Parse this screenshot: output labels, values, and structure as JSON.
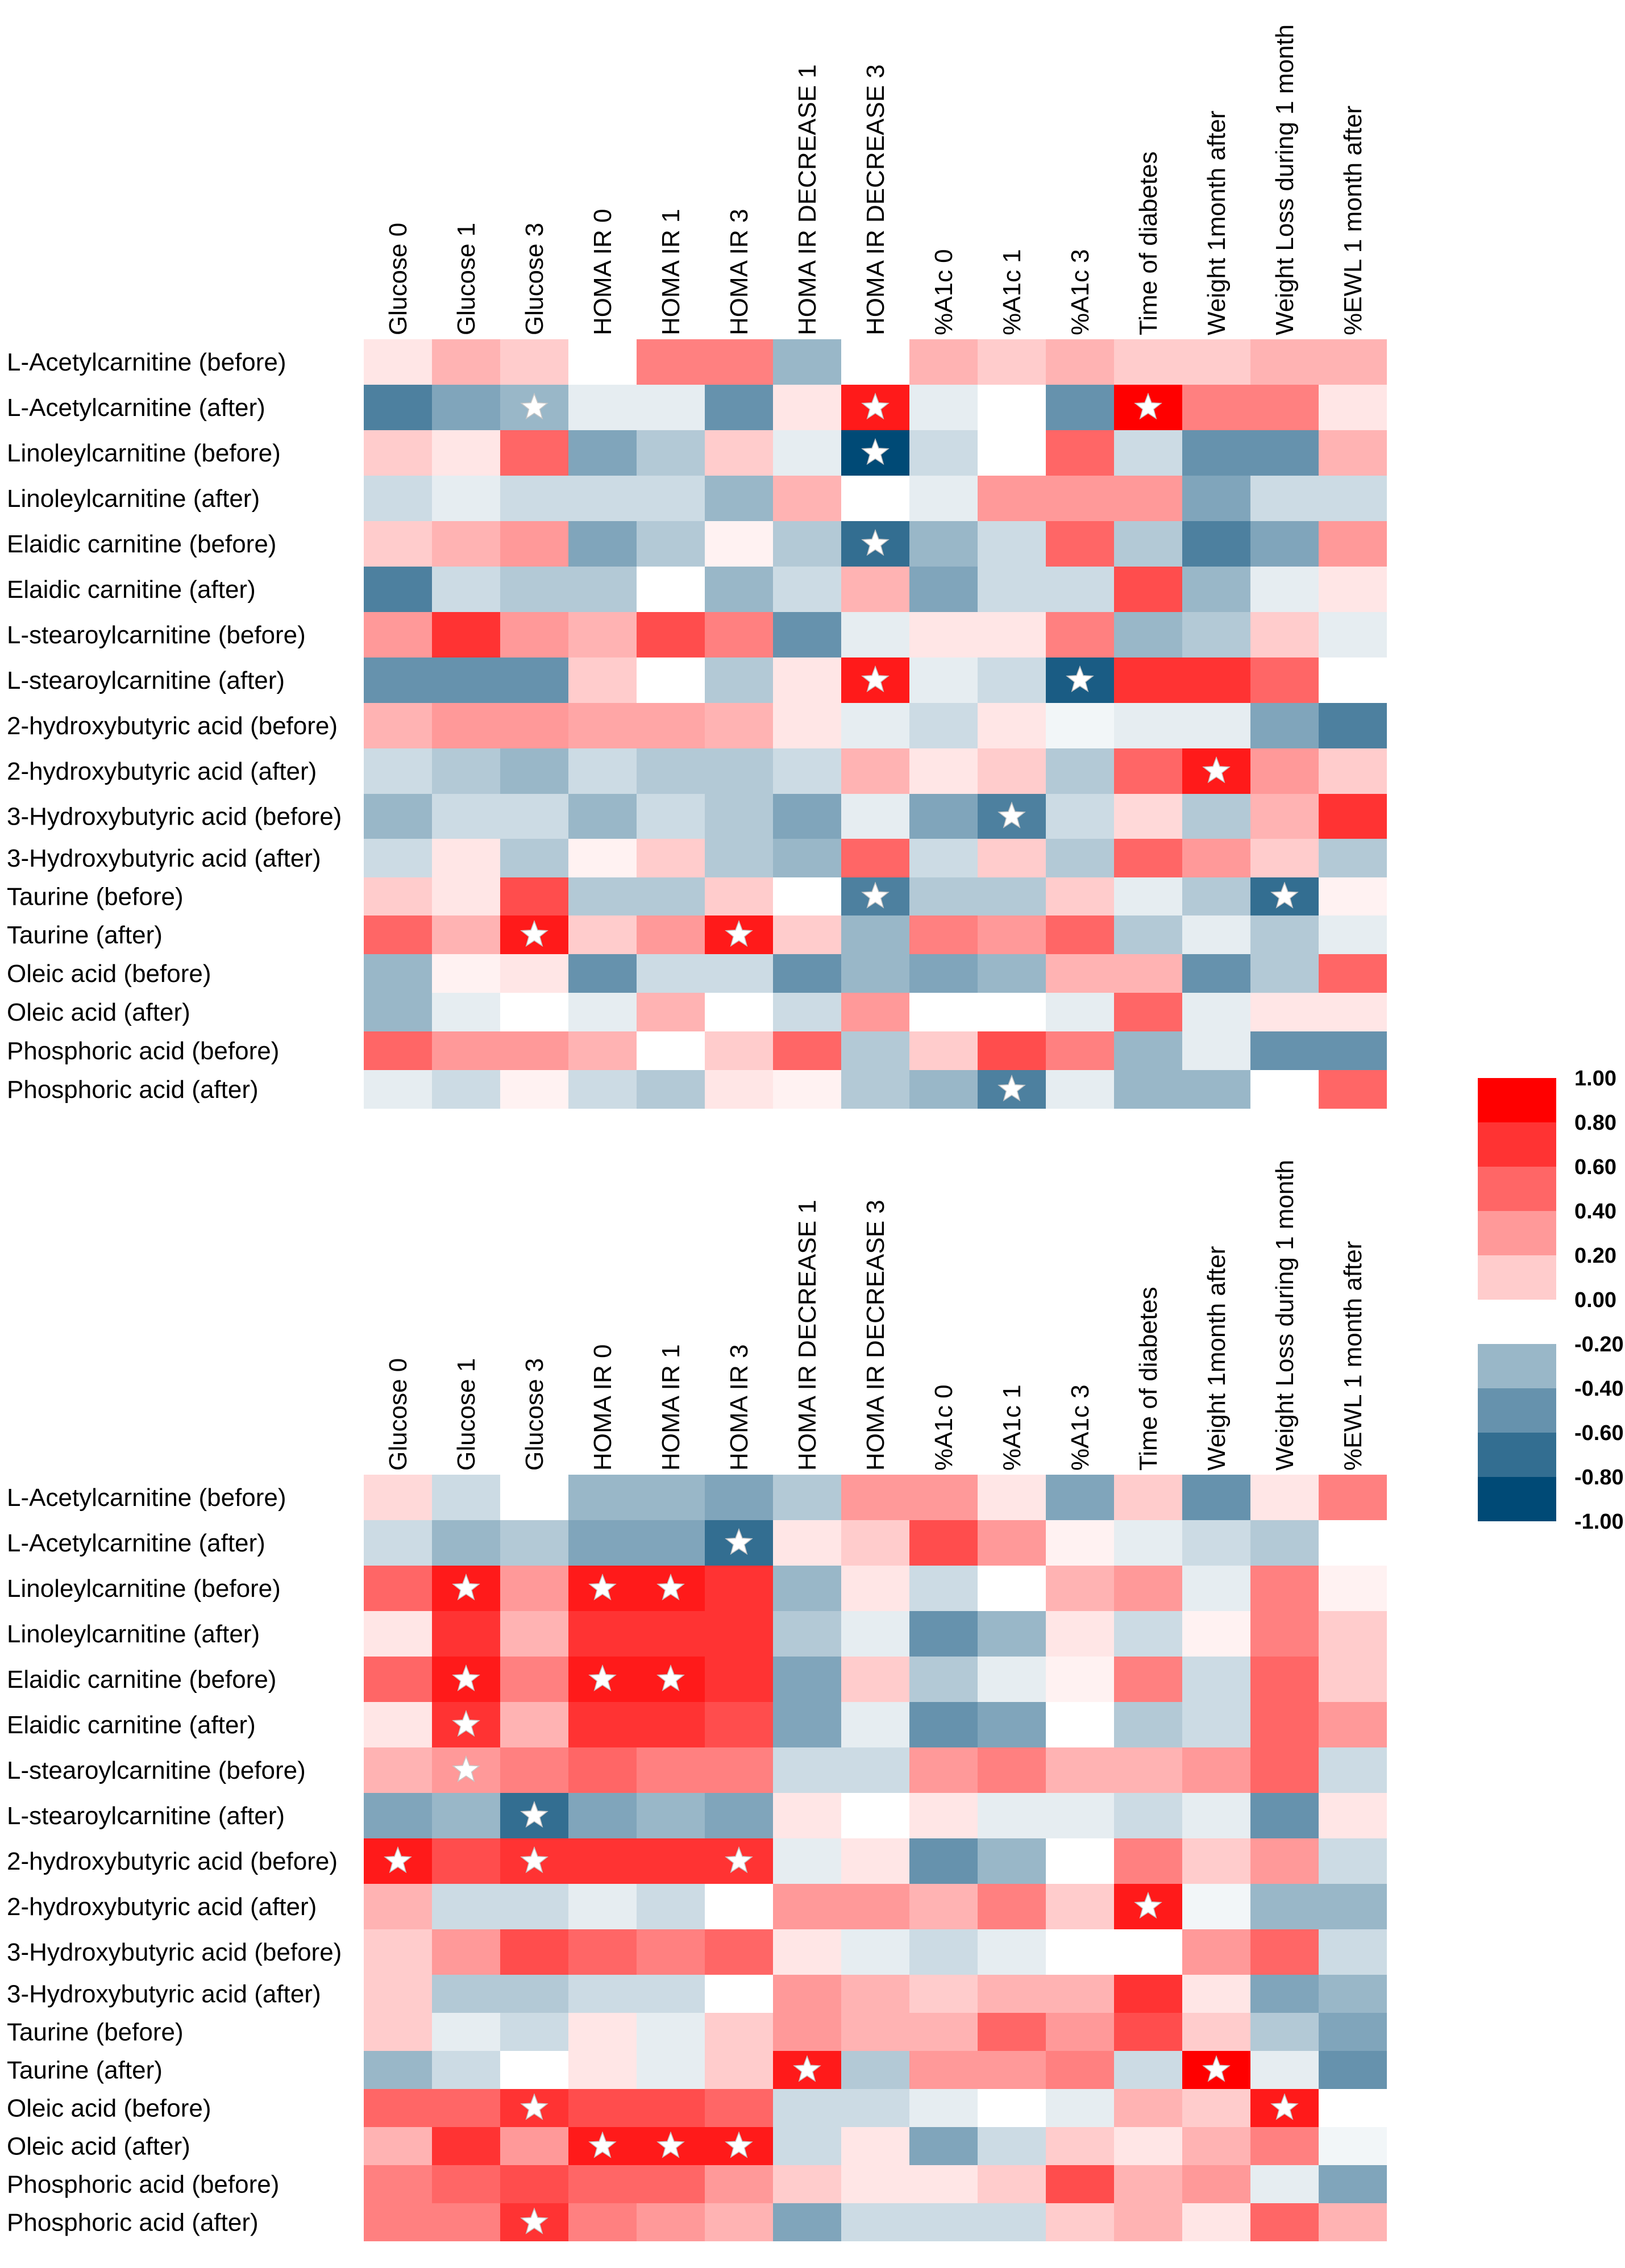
{
  "chart_data": {
    "type": "heatmap",
    "title": "",
    "columns": [
      "Glucose 0",
      "Glucose 1",
      "Glucose 3",
      "HOMA IR 0",
      "HOMA IR 1",
      "HOMA IR 3",
      "HOMA IR DECREASE 1",
      "HOMA IR DECREASE 3",
      "%A1c 0",
      "%A1c 1",
      "%A1c 3",
      "Time of diabetes",
      "Weight 1month after",
      "Weight Loss during 1 month",
      "%EWL 1 month after"
    ],
    "rows": [
      "L-Acetylcarnitine  (before)",
      "L-Acetylcarnitine  (after)",
      "Linoleylcarnitine (before)",
      "Linoleylcarnitine (after)",
      "Elaidic carnitine (before)",
      "Elaidic carnitine (after)",
      "L-stearoylcarnitine (before)",
      "L-stearoylcarnitine (after)",
      "2-hydroxybutyric acid (before)",
      "2-hydroxybutyric acid (after)",
      "3-Hydroxybutyric acid (before)",
      "3-Hydroxybutyric acid (after)",
      "Taurine (before)",
      "Taurine (after)",
      "Oleic acid (before)",
      "Oleic acid (after)",
      "Phosphoric acid (before)",
      "Phosphoric acid (after)"
    ],
    "scale": {
      "min": -1.0,
      "max": 1.0,
      "positive_color": "#ff0000",
      "negative_color": "#004a76",
      "zero_color": "#ffffff"
    },
    "panels": [
      {
        "name": "top",
        "values": [
          [
            0.1,
            0.3,
            0.2,
            0.0,
            0.5,
            0.5,
            -0.4,
            0.0,
            0.3,
            0.2,
            0.3,
            0.2,
            0.2,
            0.3,
            0.3
          ],
          [
            -0.7,
            -0.5,
            -0.4,
            -0.1,
            -0.1,
            -0.6,
            0.1,
            0.9,
            -0.1,
            0.0,
            -0.6,
            1.0,
            0.5,
            0.5,
            0.1
          ],
          [
            0.2,
            0.1,
            0.6,
            -0.5,
            -0.3,
            0.2,
            -0.1,
            -1.0,
            -0.2,
            0.0,
            0.6,
            -0.2,
            -0.6,
            -0.6,
            0.3
          ],
          [
            -0.2,
            -0.1,
            -0.2,
            -0.2,
            -0.2,
            -0.4,
            0.3,
            0.0,
            -0.1,
            0.4,
            0.4,
            0.4,
            -0.5,
            -0.2,
            -0.2
          ],
          [
            0.2,
            0.3,
            0.4,
            -0.5,
            -0.3,
            0.05,
            -0.3,
            -0.8,
            -0.4,
            -0.2,
            0.6,
            -0.3,
            -0.7,
            -0.5,
            0.4
          ],
          [
            -0.7,
            -0.2,
            -0.3,
            -0.3,
            0.0,
            -0.4,
            -0.2,
            0.3,
            -0.5,
            -0.2,
            -0.2,
            0.7,
            -0.4,
            -0.1,
            0.1
          ],
          [
            0.4,
            0.8,
            0.4,
            0.3,
            0.7,
            0.5,
            -0.6,
            -0.1,
            0.1,
            0.1,
            0.5,
            -0.4,
            -0.3,
            0.2,
            -0.1
          ],
          [
            -0.6,
            -0.6,
            -0.6,
            0.2,
            0.0,
            -0.3,
            0.1,
            0.9,
            -0.1,
            -0.2,
            -0.9,
            0.8,
            0.8,
            0.6,
            0.0
          ],
          [
            0.3,
            0.4,
            0.4,
            0.35,
            0.35,
            0.3,
            0.1,
            -0.1,
            -0.2,
            0.1,
            -0.05,
            -0.1,
            -0.1,
            -0.5,
            -0.7
          ],
          [
            -0.2,
            -0.3,
            -0.4,
            -0.2,
            -0.3,
            -0.3,
            -0.2,
            0.3,
            0.1,
            0.2,
            -0.3,
            0.6,
            0.9,
            0.4,
            0.2
          ],
          [
            -0.4,
            -0.2,
            -0.2,
            -0.4,
            -0.2,
            -0.3,
            -0.5,
            -0.1,
            -0.5,
            -0.7,
            -0.2,
            0.15,
            -0.3,
            0.3,
            0.8
          ],
          [
            -0.2,
            0.1,
            -0.3,
            0.05,
            0.2,
            -0.3,
            -0.4,
            0.6,
            -0.2,
            0.2,
            -0.3,
            0.6,
            0.4,
            0.2,
            -0.3
          ],
          [
            0.2,
            0.1,
            0.7,
            -0.3,
            -0.3,
            0.2,
            0.0,
            -0.7,
            -0.3,
            -0.3,
            0.2,
            -0.1,
            -0.3,
            -0.8,
            0.05
          ],
          [
            0.6,
            0.3,
            0.9,
            0.2,
            0.4,
            0.9,
            0.2,
            -0.4,
            0.5,
            0.4,
            0.6,
            -0.3,
            -0.1,
            -0.3,
            -0.1
          ],
          [
            -0.4,
            0.05,
            0.1,
            -0.6,
            -0.2,
            -0.2,
            -0.6,
            -0.4,
            -0.5,
            -0.4,
            0.3,
            0.3,
            -0.6,
            -0.3,
            0.6
          ],
          [
            -0.4,
            -0.1,
            0.0,
            -0.1,
            0.3,
            0.0,
            -0.2,
            0.4,
            0.0,
            0.0,
            -0.1,
            0.6,
            -0.1,
            0.1,
            0.1
          ],
          [
            0.6,
            0.4,
            0.4,
            0.3,
            0.0,
            0.2,
            0.6,
            -0.3,
            0.2,
            0.7,
            0.5,
            -0.4,
            -0.1,
            -0.6,
            -0.6
          ],
          [
            -0.1,
            -0.2,
            0.05,
            -0.2,
            -0.3,
            0.1,
            0.05,
            -0.3,
            -0.4,
            -0.7,
            -0.1,
            -0.4,
            -0.4,
            0.0,
            0.6
          ]
        ],
        "stars": [
          [
            1,
            2
          ],
          [
            1,
            7
          ],
          [
            1,
            11
          ],
          [
            2,
            7
          ],
          [
            4,
            7
          ],
          [
            7,
            7
          ],
          [
            7,
            10
          ],
          [
            9,
            12
          ],
          [
            10,
            9
          ],
          [
            12,
            7
          ],
          [
            12,
            13
          ],
          [
            13,
            2
          ],
          [
            13,
            5
          ],
          [
            17,
            9
          ]
        ]
      },
      {
        "name": "bottom",
        "values": [
          [
            0.15,
            -0.2,
            0.0,
            -0.4,
            -0.4,
            -0.5,
            -0.3,
            0.4,
            0.4,
            0.1,
            -0.5,
            0.2,
            -0.6,
            0.1,
            0.5
          ],
          [
            -0.2,
            -0.4,
            -0.3,
            -0.5,
            -0.5,
            -0.8,
            0.1,
            0.2,
            0.7,
            0.4,
            0.05,
            -0.1,
            -0.2,
            -0.3,
            0.0
          ],
          [
            0.6,
            0.9,
            0.4,
            0.9,
            0.9,
            0.8,
            -0.4,
            0.1,
            -0.2,
            0.0,
            0.3,
            0.4,
            -0.1,
            0.5,
            0.05
          ],
          [
            0.1,
            0.8,
            0.3,
            0.8,
            0.8,
            0.8,
            -0.3,
            -0.1,
            -0.6,
            -0.4,
            0.1,
            -0.2,
            0.05,
            0.5,
            0.2
          ],
          [
            0.6,
            0.9,
            0.5,
            0.9,
            0.9,
            0.8,
            -0.5,
            0.2,
            -0.3,
            -0.1,
            0.05,
            0.5,
            -0.2,
            0.6,
            0.2
          ],
          [
            0.1,
            0.8,
            0.3,
            0.8,
            0.8,
            0.7,
            -0.5,
            -0.1,
            -0.6,
            -0.5,
            0.0,
            -0.3,
            -0.2,
            0.6,
            0.4
          ],
          [
            0.3,
            0.4,
            0.5,
            0.6,
            0.5,
            0.5,
            -0.2,
            -0.2,
            0.4,
            0.5,
            0.3,
            0.3,
            0.4,
            0.6,
            -0.2
          ],
          [
            -0.5,
            -0.4,
            -0.8,
            -0.5,
            -0.4,
            -0.5,
            0.1,
            0.0,
            0.1,
            -0.1,
            -0.1,
            -0.2,
            -0.1,
            -0.6,
            0.1
          ],
          [
            0.9,
            0.7,
            0.8,
            0.8,
            0.8,
            0.8,
            -0.1,
            0.1,
            -0.6,
            -0.4,
            0.0,
            0.5,
            0.2,
            0.4,
            -0.2
          ],
          [
            0.3,
            -0.2,
            -0.2,
            -0.1,
            -0.2,
            0.0,
            0.4,
            0.4,
            0.3,
            0.5,
            0.2,
            0.9,
            -0.05,
            -0.4,
            -0.4
          ],
          [
            0.2,
            0.4,
            0.7,
            0.6,
            0.5,
            0.6,
            0.1,
            -0.1,
            -0.2,
            -0.1,
            0.0,
            0.0,
            0.4,
            0.6,
            -0.2
          ],
          [
            0.2,
            -0.3,
            -0.3,
            -0.2,
            -0.2,
            0.0,
            0.4,
            0.3,
            0.2,
            0.3,
            0.3,
            0.8,
            0.1,
            -0.5,
            -0.4
          ],
          [
            0.2,
            -0.1,
            -0.2,
            0.1,
            -0.1,
            0.2,
            0.4,
            0.3,
            0.3,
            0.6,
            0.4,
            0.7,
            0.2,
            -0.3,
            -0.5
          ],
          [
            -0.4,
            -0.2,
            0.0,
            0.1,
            -0.1,
            0.2,
            0.9,
            -0.3,
            0.4,
            0.4,
            0.5,
            -0.2,
            1.0,
            -0.1,
            -0.6
          ],
          [
            0.6,
            0.6,
            0.8,
            0.7,
            0.7,
            0.6,
            -0.2,
            -0.2,
            -0.1,
            0.0,
            -0.1,
            0.3,
            0.2,
            0.9,
            0.0
          ],
          [
            0.3,
            0.8,
            0.4,
            0.9,
            0.9,
            0.9,
            -0.2,
            0.1,
            -0.5,
            -0.2,
            0.2,
            0.1,
            0.3,
            0.5,
            -0.05
          ],
          [
            0.5,
            0.6,
            0.7,
            0.6,
            0.6,
            0.4,
            0.2,
            0.1,
            0.1,
            0.2,
            0.7,
            0.3,
            0.4,
            -0.1,
            -0.5
          ],
          [
            0.5,
            0.5,
            0.8,
            0.5,
            0.4,
            0.3,
            -0.5,
            -0.2,
            -0.2,
            -0.2,
            0.2,
            0.3,
            0.1,
            0.6,
            0.3
          ]
        ],
        "stars": [
          [
            1,
            5
          ],
          [
            2,
            1
          ],
          [
            2,
            3
          ],
          [
            2,
            4
          ],
          [
            4,
            1
          ],
          [
            4,
            3
          ],
          [
            4,
            4
          ],
          [
            5,
            1
          ],
          [
            6,
            1
          ],
          [
            7,
            2
          ],
          [
            8,
            0
          ],
          [
            8,
            2
          ],
          [
            8,
            5
          ],
          [
            9,
            11
          ],
          [
            13,
            6
          ],
          [
            13,
            12
          ],
          [
            14,
            2
          ],
          [
            14,
            13
          ],
          [
            15,
            3
          ],
          [
            15,
            4
          ],
          [
            15,
            5
          ],
          [
            17,
            2
          ]
        ]
      }
    ],
    "legend": {
      "labels": [
        "1.00",
        "0.80",
        "0.60",
        "0.40",
        "0.20",
        "0.00",
        "-0.20",
        "-0.40",
        "-0.60",
        "-0.80",
        "-1.00"
      ]
    }
  }
}
